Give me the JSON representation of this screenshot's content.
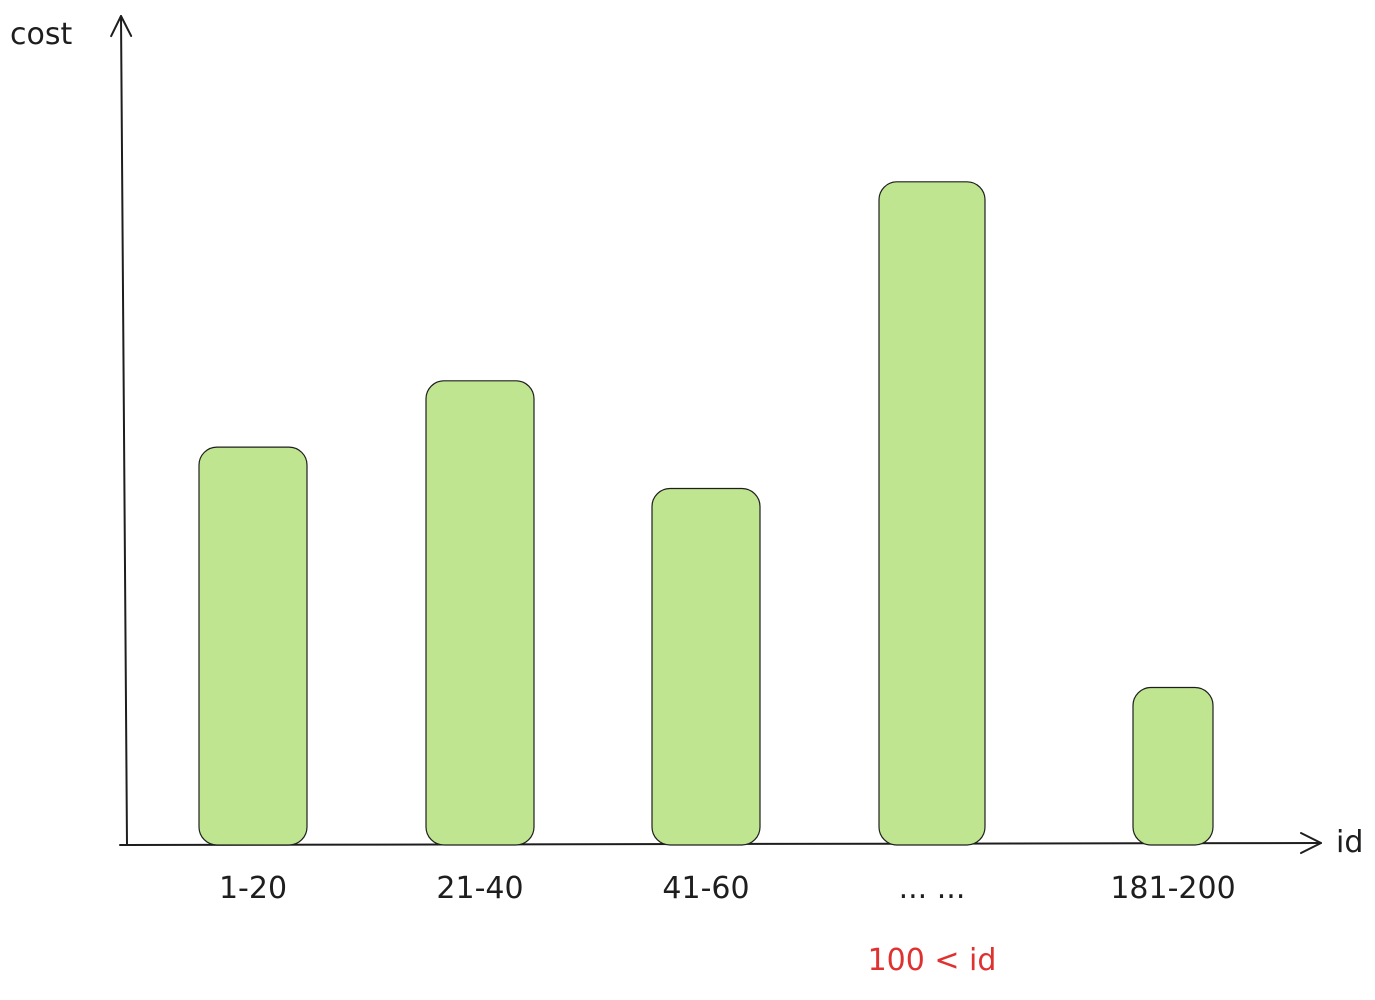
{
  "chart_data": {
    "type": "bar",
    "categories": [
      "1-20",
      "21-40",
      "41-60",
      "... ...",
      "181-200"
    ],
    "values": [
      48,
      56,
      43,
      80,
      19
    ],
    "ylim": [
      0,
      100
    ],
    "xlabel": "id",
    "ylabel": "cost",
    "grid": false,
    "annotations": [
      {
        "text": "100 < id",
        "category": "... ...",
        "color": "#e03131"
      }
    ],
    "colors": {
      "bar_fill": "#c0e590",
      "bar_stroke": "#1e1e1e",
      "axis": "#1e1e1e"
    }
  }
}
